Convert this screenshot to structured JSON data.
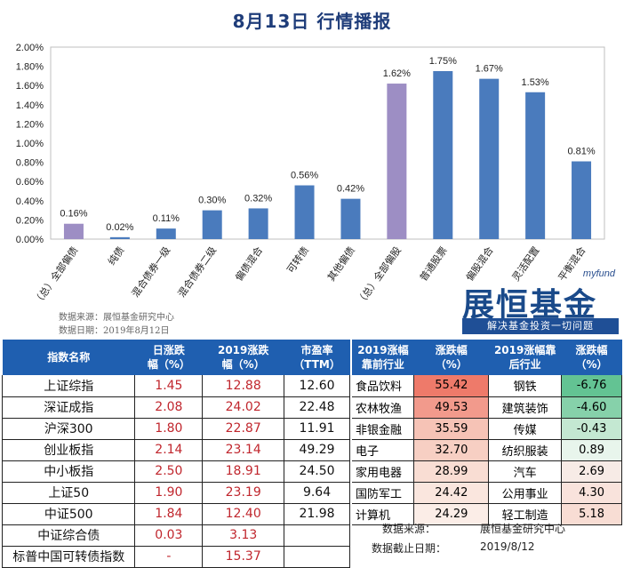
{
  "title": "8月13日  行情播报",
  "source_line1": "数据来源：展恒基金研究中心",
  "source_line2": "数据日期：2019年8月12日",
  "logo": {
    "myfund": "myfund",
    "brand": "展恒基金",
    "slogan": "解决基金投资一切问题"
  },
  "colors": {
    "bar_blue": "#4a7bbd",
    "bar_purple": "#9d8ec4",
    "header_blue": "#1f5fb0",
    "red_text": "#c0262d",
    "up_heat": "#f08a7a",
    "down_heat": "#6cc79c"
  },
  "chart_data": {
    "type": "bar",
    "categories": [
      "（总）全部偏债",
      "纯债",
      "混合债券一级",
      "混合债券二级",
      "偏债混合",
      "可转债",
      "其他偏债",
      "（总）全部偏股",
      "普通股票",
      "偏股混合",
      "灵活配置",
      "平衡混合"
    ],
    "values": [
      0.16,
      0.02,
      0.11,
      0.3,
      0.32,
      0.56,
      0.42,
      1.62,
      1.75,
      1.67,
      1.53,
      0.81
    ],
    "value_labels": [
      "0.16%",
      "0.02%",
      "0.11%",
      "0.30%",
      "0.32%",
      "0.56%",
      "0.42%",
      "1.62%",
      "1.75%",
      "1.67%",
      "1.53%",
      "0.81%"
    ],
    "highlight": [
      true,
      false,
      false,
      false,
      false,
      false,
      false,
      true,
      false,
      false,
      false,
      false
    ],
    "yticks": [
      "0.00%",
      "0.20%",
      "0.40%",
      "0.60%",
      "0.80%",
      "1.00%",
      "1.20%",
      "1.40%",
      "1.60%",
      "1.80%",
      "2.00%"
    ],
    "ylim": [
      0,
      2.0
    ],
    "grid": false
  },
  "index_table": {
    "headers": [
      "指数名称",
      "日涨跌\n幅（%）",
      "2019涨跌\n幅（%）",
      "市盈率\n（TTM）"
    ],
    "rows": [
      [
        "上证综指",
        "1.45",
        "12.88",
        "12.60"
      ],
      [
        "深证成指",
        "2.08",
        "24.02",
        "22.48"
      ],
      [
        "沪深300",
        "1.80",
        "22.87",
        "11.91"
      ],
      [
        "创业板指",
        "2.14",
        "23.14",
        "49.29"
      ],
      [
        "中小板指",
        "2.50",
        "18.91",
        "24.50"
      ],
      [
        "上证50",
        "1.90",
        "23.19",
        "9.64"
      ],
      [
        "中证500",
        "1.84",
        "12.40",
        "21.98"
      ],
      [
        "中证综合债",
        "0.03",
        "3.13",
        ""
      ],
      [
        "标普中国可转债指数",
        "-",
        "15.37",
        ""
      ]
    ]
  },
  "industry_table": {
    "headers": [
      "2019涨幅\n靠前行业",
      "涨跌幅\n（%）",
      "2019涨幅靠\n后行业",
      "涨跌幅\n（%）"
    ],
    "rows": [
      [
        "食品饮料",
        "55.42",
        "钢铁",
        "-6.76"
      ],
      [
        "农林牧渔",
        "49.53",
        "建筑装饰",
        "-4.60"
      ],
      [
        "非银金融",
        "35.59",
        "传媒",
        "-0.43"
      ],
      [
        "电子",
        "32.70",
        "纺织服装",
        "0.89"
      ],
      [
        "家用电器",
        "28.99",
        "汽车",
        "2.69"
      ],
      [
        "国防军工",
        "24.42",
        "公用事业",
        "4.30"
      ],
      [
        "计算机",
        "24.29",
        "轻工制造",
        "5.18"
      ]
    ],
    "up_colors": [
      "#ee7a6a",
      "#f29a8c",
      "#f6c3b6",
      "#f7cfc3",
      "#f9ddd3",
      "#fae6de",
      "#fbede7"
    ],
    "down_colors": [
      "#63c393",
      "#86d1aa",
      "#c4e8d2",
      "#e8f5ec",
      "#f7ebe6",
      "#f9e3dc",
      "#f8ddd4"
    ]
  },
  "footer": {
    "source_label": "数据来源：",
    "source_value": "展恒基金研究中心",
    "date_label": "数据截止日期：",
    "date_value": "2019/8/12"
  }
}
